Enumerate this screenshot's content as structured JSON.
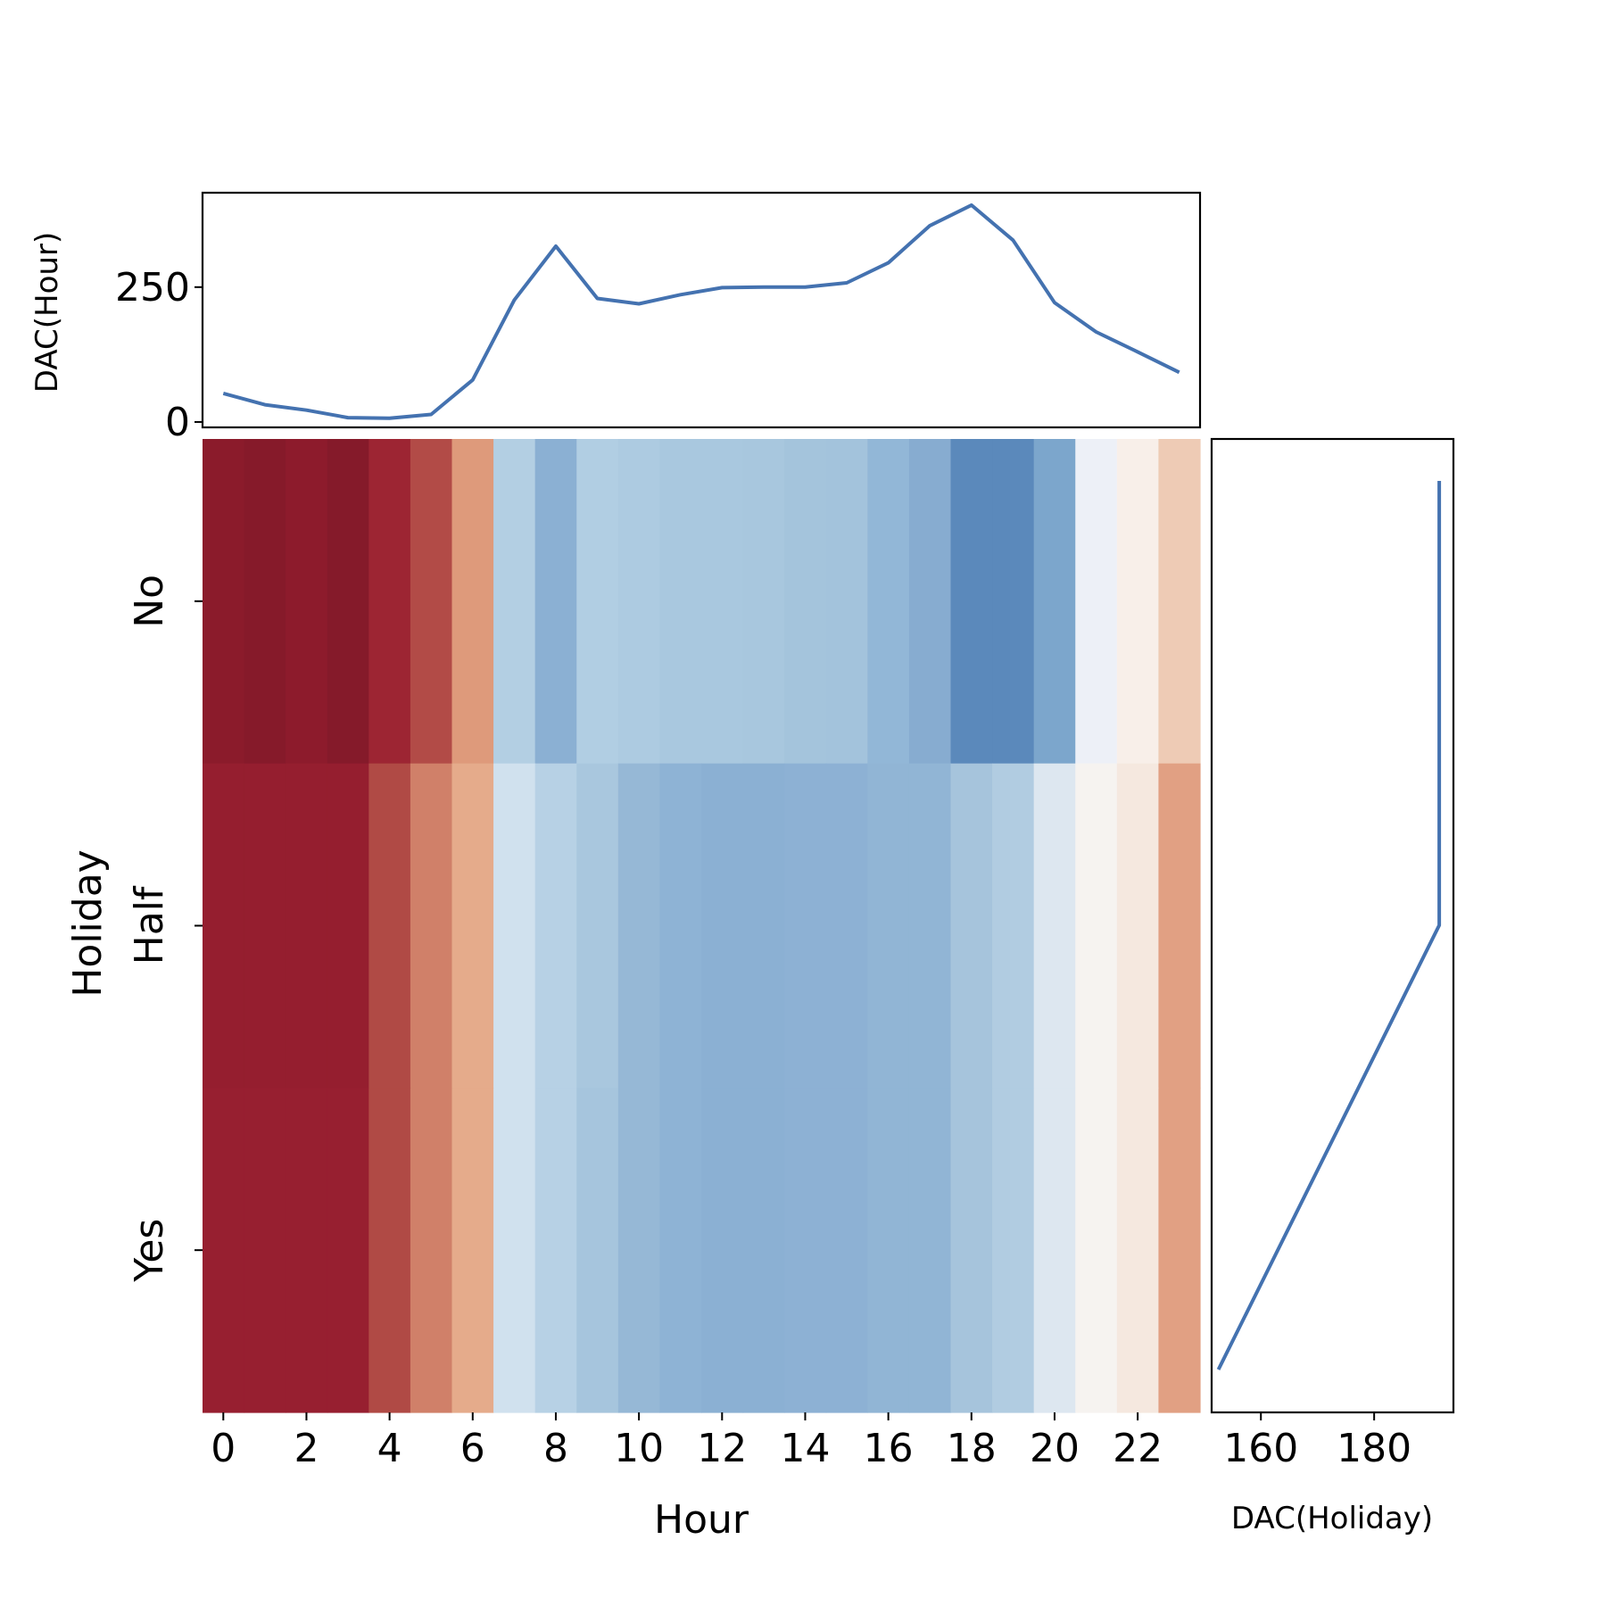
{
  "chart_data": {
    "type": "heatmap",
    "heatmap": {
      "xlabel": "Hour",
      "ylabel": "Holiday",
      "x_categories": [
        0,
        1,
        2,
        3,
        4,
        5,
        6,
        7,
        8,
        9,
        10,
        11,
        12,
        13,
        14,
        15,
        16,
        17,
        18,
        19,
        20,
        21,
        22,
        23
      ],
      "x_tick_labels": [
        "0",
        "2",
        "4",
        "6",
        "8",
        "10",
        "12",
        "14",
        "16",
        "18",
        "20",
        "22"
      ],
      "y_categories": [
        "No",
        "Half",
        "Yes"
      ],
      "colors": [
        [
          "#8b1b2b",
          "#861a2a",
          "#8d1b2c",
          "#851a2a",
          "#9d2533",
          "#b24b47",
          "#de9a7b",
          "#b3cfe3",
          "#8bb0d3",
          "#b1cee3",
          "#adcbe1",
          "#a9c8df",
          "#a9c8df",
          "#a8c7de",
          "#a4c4dc",
          "#a3c3dc",
          "#92b7d7",
          "#87acd0",
          "#5b89bb",
          "#5b89bb",
          "#7ca6cc",
          "#edf0f7",
          "#f8efe9",
          "#eecbb5"
        ],
        [
          "#951e2f",
          "#951e2f",
          "#951e2f",
          "#951e2f",
          "#b04a45",
          "#d08069",
          "#e5ab8b",
          "#d0e1ee",
          "#b7d1e5",
          "#a9c7de",
          "#96b8d6",
          "#8eb3d5",
          "#8bb0d3",
          "#8bb0d3",
          "#8db1d4",
          "#8db1d4",
          "#91b5d5",
          "#91b5d5",
          "#a6c4dc",
          "#b1cce1",
          "#dde7f0",
          "#f6f3f0",
          "#f5e8df",
          "#e1a083"
        ],
        [
          "#971f30",
          "#971f30",
          "#971f30",
          "#971f30",
          "#b04a45",
          "#d08069",
          "#e5ab8b",
          "#d0e1ee",
          "#b7d1e5",
          "#a6c5dd",
          "#96b8d6",
          "#8eb3d5",
          "#8bb0d3",
          "#8bb0d3",
          "#8db1d4",
          "#8db1d4",
          "#91b5d5",
          "#91b5d5",
          "#a6c4dc",
          "#b1cce1",
          "#dde7f0",
          "#f6f3f0",
          "#f5e8df",
          "#e1a083"
        ]
      ]
    },
    "top_line": {
      "type": "line",
      "ylabel": "DAC(Hour)",
      "color": "#4472b0",
      "x": [
        0,
        1,
        2,
        3,
        4,
        5,
        6,
        7,
        8,
        9,
        10,
        11,
        12,
        13,
        14,
        15,
        16,
        17,
        18,
        19,
        20,
        21,
        22,
        23
      ],
      "values": [
        53,
        32,
        22,
        8,
        7,
        14,
        78,
        226,
        326,
        229,
        219,
        236,
        249,
        250,
        250,
        258,
        295,
        364,
        402,
        337,
        221,
        167,
        130,
        92
      ],
      "yticks": [
        0,
        250
      ],
      "ylim": [
        -10,
        425
      ]
    },
    "right_line": {
      "type": "line",
      "xlabel": "DAC(Holiday)",
      "color": "#4472b0",
      "categories": [
        "No",
        "Half",
        "Yes"
      ],
      "values": [
        191.5,
        191.5,
        152.5
      ],
      "xticks": [
        160,
        180
      ],
      "xlim": [
        151.3,
        194
      ]
    }
  }
}
